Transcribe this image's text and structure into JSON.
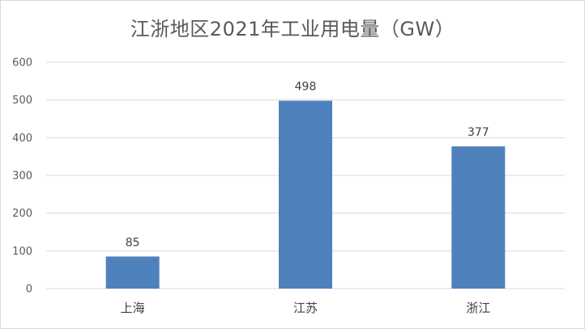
{
  "chart_data": {
    "type": "bar",
    "title": "江浙地区2021年工业用电量（GW）",
    "categories": [
      "上海",
      "江苏",
      "浙江"
    ],
    "values": [
      85,
      498,
      377
    ],
    "data_labels": [
      "85",
      "498",
      "377"
    ],
    "xlabel": "",
    "ylabel": "",
    "ylim": [
      0,
      600
    ],
    "yticks": [
      "0",
      "100",
      "200",
      "300",
      "400",
      "500",
      "600"
    ],
    "grid": true,
    "legend": "none",
    "bar_color": "#4f81bd",
    "grid_color": "#d9d9d9"
  }
}
